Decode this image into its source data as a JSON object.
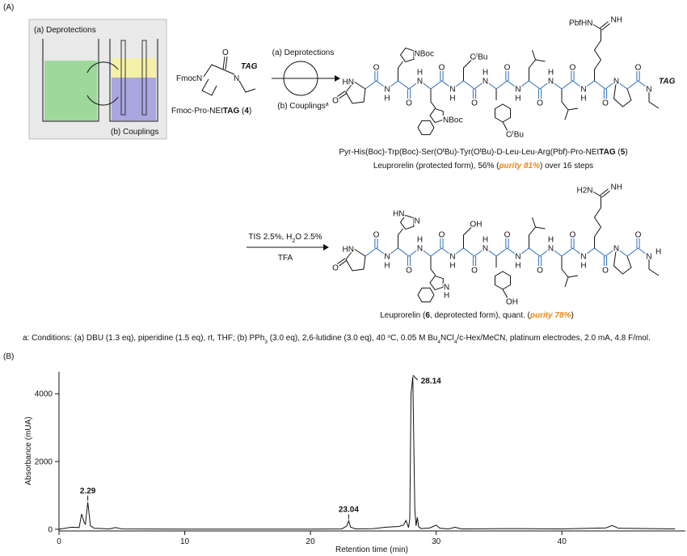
{
  "panel_a": {
    "label": "(A)",
    "box": {
      "top": "(a) Deprotections",
      "bottom": "(b) Couplings"
    },
    "reagent": {
      "fmoc": "FmocN",
      "o": "O",
      "n": "N",
      "tag": "TAG",
      "caption": [
        "Fmoc-Pro-NEt",
        "TAG",
        " (",
        "4",
        ")"
      ]
    },
    "arrow_1": {
      "top": "(a) Deprotections",
      "bottom": "(b) Couplings",
      "bottom_sup": "a"
    },
    "product_5": {
      "atoms": {
        "o": "O",
        "n": "N",
        "h": "H",
        "hn": "HN",
        "nboc": "NBoc",
        "tbu": [
          "O",
          "t",
          "Bu"
        ],
        "pbfhn": "PbfHN",
        "nh": "NH",
        "tag": "TAG"
      },
      "name": [
        "Pyr-His(Boc)-Trp(Boc)-Ser(O",
        "t",
        "Bu)-Tyr(O",
        "t",
        "Bu)-D-Leu-Leu-Arg(Pbf)-Pro-NEt",
        "TAG",
        " (",
        "5",
        ")"
      ],
      "yield": [
        "Leuprorelin (protected form), 56% (",
        "purity 81%",
        ") over 16 steps"
      ]
    },
    "arrow_2": {
      "top": [
        "TIS 2.5%, H",
        "2",
        "O 2.5%"
      ],
      "bottom": "TFA"
    },
    "product_6": {
      "atoms": {
        "o": "O",
        "n": "N",
        "h": "H",
        "hn": "HN",
        "oh": "OH",
        "h2n": "H2N",
        "nh": "NH"
      },
      "caption": [
        "Leuprorelin (",
        "6",
        ", deprotected form), quant. (",
        "purity 78%",
        ")"
      ]
    },
    "footnote": [
      "a: Conditions: (a) DBU (1.3 eq), piperidine (1.5 eq), rt, THF; (b) PPh",
      "3",
      " (3.0 eq), 2,6-lutidine (3.0 eq), 40 ",
      "o",
      "C, 0.05 M Bu",
      "4",
      "NCl",
      "4",
      "/c-Hex/MeCN, platinum electrodes, 2.0 mA, 4.8 F/mol."
    ]
  },
  "panel_b_label": "(B)",
  "chart_data": {
    "type": "line",
    "x_label": "Retention time (min)",
    "y_label": "Absorbance (mUA)",
    "x": [
      0,
      1.0,
      1.6,
      1.8,
      2.0,
      2.1,
      2.29,
      2.5,
      2.8,
      4,
      4.5,
      5,
      10,
      20,
      22.5,
      22.9,
      23.04,
      23.2,
      23.6,
      25,
      26,
      27,
      27.4,
      27.6,
      27.8,
      27.9,
      28.0,
      28.14,
      28.3,
      28.4,
      28.5,
      28.6,
      28.8,
      29.5,
      30,
      30.3,
      31,
      31.5,
      32,
      36,
      40,
      43.5,
      44,
      44.5,
      49
    ],
    "values": [
      0,
      60,
      50,
      450,
      200,
      150,
      800,
      100,
      30,
      10,
      50,
      10,
      5,
      5,
      10,
      100,
      250,
      60,
      10,
      20,
      60,
      80,
      120,
      260,
      50,
      300,
      4000,
      4500,
      600,
      100,
      350,
      80,
      20,
      40,
      120,
      30,
      10,
      60,
      10,
      20,
      10,
      40,
      110,
      30,
      10
    ],
    "color": "#111111",
    "peak_labels": [
      2.29,
      23.04,
      28.14
    ],
    "xlim": [
      0,
      49.5
    ],
    "ylim": [
      -50,
      4650
    ],
    "xticks": [
      0,
      10,
      20,
      30,
      40
    ],
    "yticks": [
      0,
      2000,
      4000
    ]
  }
}
